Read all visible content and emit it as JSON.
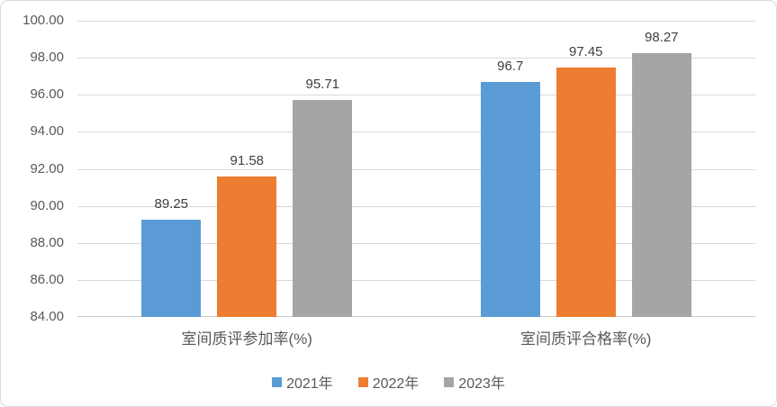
{
  "chart_data": {
    "type": "bar",
    "title": "",
    "xlabel": "",
    "ylabel": "",
    "categories": [
      "室间质评参加率(%)",
      "室间质评合格率(%)"
    ],
    "series": [
      {
        "name": "2021年",
        "color": "#5B9BD5",
        "values": [
          89.25,
          96.7
        ],
        "labels": [
          "89.25",
          "96.7"
        ]
      },
      {
        "name": "2022年",
        "color": "#ED7D31",
        "values": [
          91.58,
          97.45
        ],
        "labels": [
          "91.58",
          "97.45"
        ]
      },
      {
        "name": "2023年",
        "color": "#A5A5A5",
        "values": [
          95.71,
          98.27
        ],
        "labels": [
          "95.71",
          "98.27"
        ]
      }
    ],
    "ylim": [
      84,
      100
    ],
    "ytick_step": 2,
    "ytick_labels": [
      "84.00",
      "86.00",
      "88.00",
      "90.00",
      "92.00",
      "94.00",
      "96.00",
      "98.00",
      "100.00"
    ],
    "grid": true,
    "legend_position": "bottom",
    "colors": {
      "background": "#FFFFFF",
      "border": "#D9D9D9",
      "gridline": "#D9D9D9",
      "axis_line": "#C9C9C9",
      "tick_text": "#595959",
      "data_label_text": "#404040",
      "category_text": "#595959",
      "legend_text": "#595959"
    }
  }
}
